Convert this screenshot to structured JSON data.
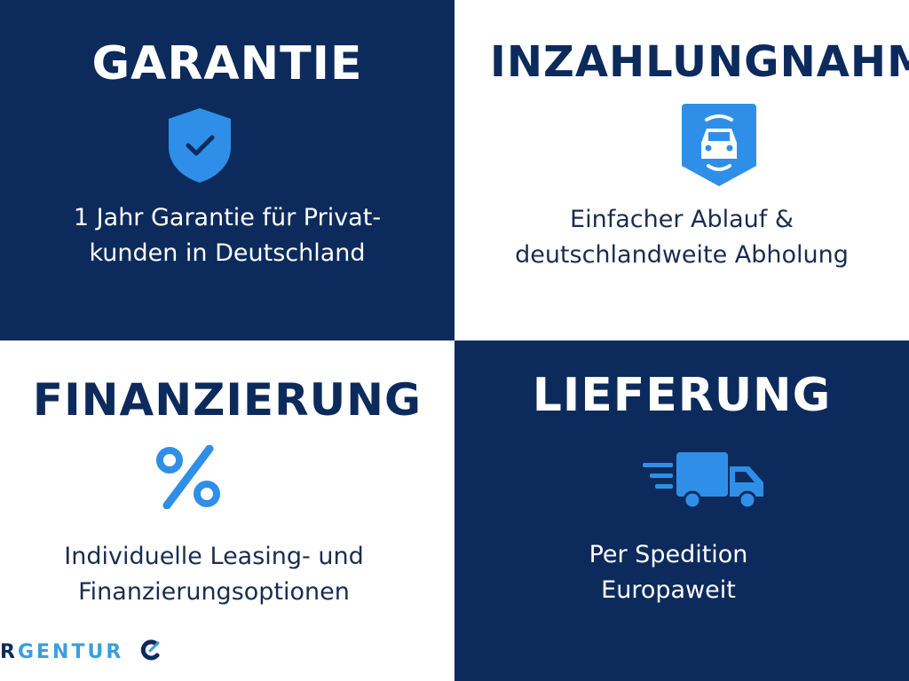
{
  "tiles": [
    {
      "title": "GARANTIE",
      "icon": "shield-check-icon",
      "desc1": "1 Jahr Garantie für Privat-",
      "desc2": "kunden in Deutschland"
    },
    {
      "title": "INZAHLUNGNAHME",
      "icon": "car-badge-icon",
      "desc1": "Einfacher Ablauf &",
      "desc2": "deutschlandweite Abholung"
    },
    {
      "title": "FINANZIERUNG",
      "icon": "percent-icon",
      "desc1": "Individuelle Leasing- und",
      "desc2": "Finanzierungsoptionen"
    },
    {
      "title": "LIEFERUNG",
      "icon": "truck-icon",
      "desc1": "Per Spedition",
      "desc2": "Europaweit"
    }
  ],
  "logo": {
    "first": "R",
    "rest": "GENTUR"
  },
  "colors": {
    "navy": "#0c2b5c",
    "accent": "#2f8fe8"
  }
}
